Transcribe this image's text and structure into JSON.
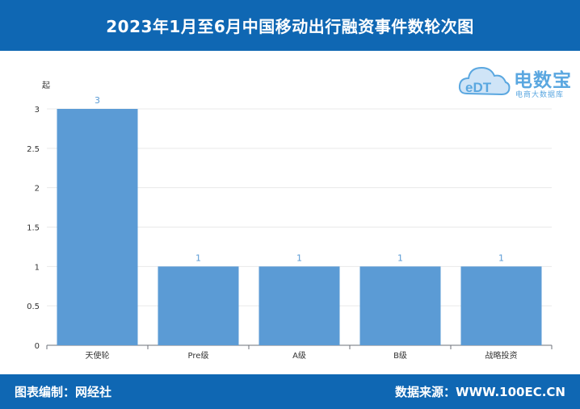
{
  "header": {
    "title": "2023年1月至6月中国移动出行融资事件数轮次图"
  },
  "footer": {
    "editor": "图表编制：网经社",
    "source": "数据来源：WWW.100EC.CN"
  },
  "logo": {
    "name": "电数宝",
    "sub": "电商大数据库",
    "badge": "eDT",
    "color": "#5aa7e0"
  },
  "colors": {
    "header_bg": "#0f67b3",
    "bar": "#5b9bd5",
    "data_label": "#5b9bd5"
  },
  "chart_data": {
    "type": "bar",
    "ylabel": "起",
    "categories": [
      "天使轮",
      "Pre级",
      "A级",
      "B级",
      "战略投资"
    ],
    "values": [
      3,
      1,
      1,
      1,
      1
    ],
    "data_labels": [
      "3",
      "1",
      "1",
      "1",
      "1"
    ],
    "yticks": [
      "0",
      "0.5",
      "1",
      "1.5",
      "2",
      "2.5",
      "3"
    ],
    "ylim": [
      0,
      3
    ],
    "grid": true,
    "legend": "none"
  }
}
